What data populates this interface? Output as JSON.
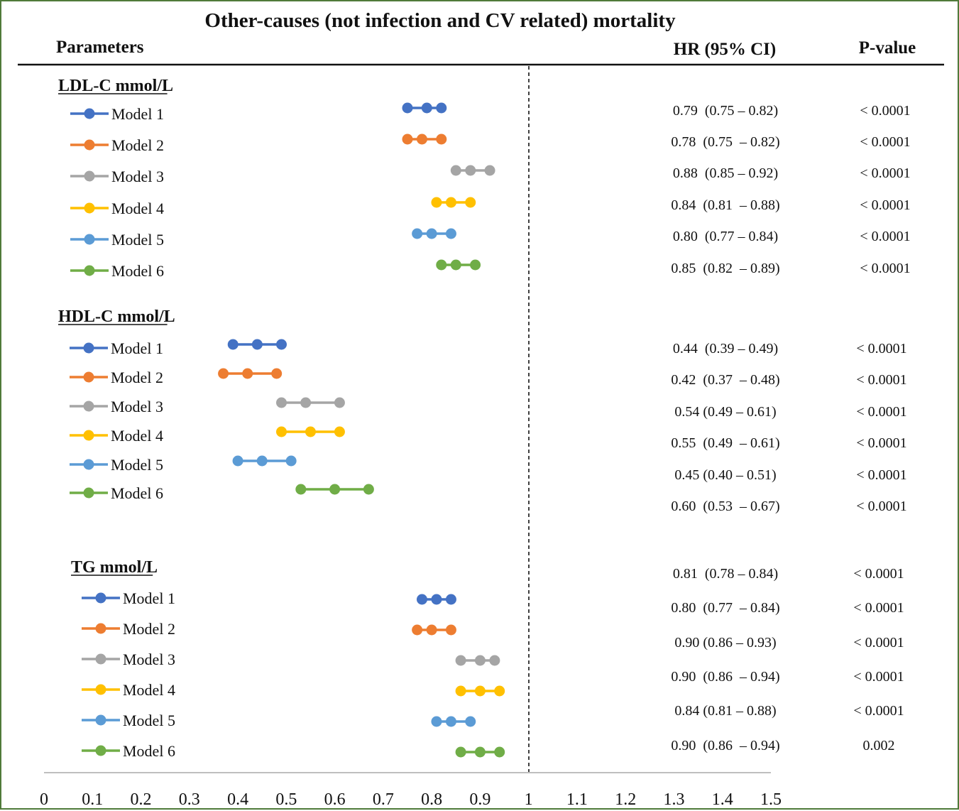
{
  "chart_data": {
    "type": "forest",
    "title": "Other-causes (not infection and CV related) mortality",
    "column_headers": {
      "parameters": "Parameters",
      "hr": "HR (95% CI)",
      "p": "P-value"
    },
    "xlim": [
      0,
      1.5
    ],
    "x_ticks": [
      "0",
      "0.1",
      "0.2",
      "0.3",
      "0.4",
      "0.5",
      "0.6",
      "0.7",
      "0.8",
      "0.9",
      "1",
      "1.1",
      "1.2",
      "1.3",
      "1.4",
      "1.5"
    ],
    "reference_line": 1,
    "model_colors": {
      "Model 1": "#4472c4",
      "Model 2": "#ed7d31",
      "Model 3": "#a5a5a5",
      "Model 4": "#ffc000",
      "Model 5": "#5b9bd5",
      "Model 6": "#70ad47"
    },
    "groups": [
      {
        "name": "LDL-C mmol/L",
        "rows": [
          {
            "model": "Model 1",
            "hr": 0.79,
            "lower": 0.75,
            "upper": 0.82,
            "hr_text": "0.79  (0.75 – 0.82)",
            "p": "< 0.0001"
          },
          {
            "model": "Model 2",
            "hr": 0.78,
            "lower": 0.75,
            "upper": 0.82,
            "hr_text": "0.78  (0.75  – 0.82)",
            "p": "< 0.0001"
          },
          {
            "model": "Model 3",
            "hr": 0.88,
            "lower": 0.85,
            "upper": 0.92,
            "hr_text": "0.88  (0.85 – 0.92)",
            "p": "< 0.0001"
          },
          {
            "model": "Model 4",
            "hr": 0.84,
            "lower": 0.81,
            "upper": 0.88,
            "hr_text": "0.84  (0.81  – 0.88)",
            "p": "< 0.0001"
          },
          {
            "model": "Model 5",
            "hr": 0.8,
            "lower": 0.77,
            "upper": 0.84,
            "hr_text": "0.80  (0.77 – 0.84)",
            "p": "< 0.0001"
          },
          {
            "model": "Model 6",
            "hr": 0.85,
            "lower": 0.82,
            "upper": 0.89,
            "hr_text": "0.85  (0.82  – 0.89)",
            "p": "< 0.0001"
          }
        ]
      },
      {
        "name": "HDL-C mmol/L",
        "rows": [
          {
            "model": "Model 1",
            "hr": 0.44,
            "lower": 0.39,
            "upper": 0.49,
            "hr_text": "0.44  (0.39 – 0.49)",
            "p": "< 0.0001"
          },
          {
            "model": "Model 2",
            "hr": 0.42,
            "lower": 0.37,
            "upper": 0.48,
            "hr_text": "0.42  (0.37  – 0.48)",
            "p": "< 0.0001"
          },
          {
            "model": "Model 3",
            "hr": 0.54,
            "lower": 0.49,
            "upper": 0.61,
            "hr_text": "0.54 (0.49 – 0.61)",
            "p": "< 0.0001"
          },
          {
            "model": "Model 4",
            "hr": 0.55,
            "lower": 0.49,
            "upper": 0.61,
            "hr_text": "0.55  (0.49  – 0.61)",
            "p": "< 0.0001"
          },
          {
            "model": "Model 5",
            "hr": 0.45,
            "lower": 0.4,
            "upper": 0.51,
            "hr_text": "0.45 (0.40 – 0.51)",
            "p": "< 0.0001"
          },
          {
            "model": "Model 6",
            "hr": 0.6,
            "lower": 0.53,
            "upper": 0.67,
            "hr_text": "0.60  (0.53  – 0.67)",
            "p": "< 0.0001"
          }
        ]
      },
      {
        "name": "TG mmol/L",
        "rows": [
          {
            "model": "Model 1",
            "hr": 0.81,
            "lower": 0.78,
            "upper": 0.84,
            "hr_text": "0.81  (0.78 – 0.84)",
            "p": "< 0.0001"
          },
          {
            "model": "Model 2",
            "hr": 0.8,
            "lower": 0.77,
            "upper": 0.84,
            "hr_text": "0.80  (0.77  – 0.84)",
            "p": "< 0.0001"
          },
          {
            "model": "Model 3",
            "hr": 0.9,
            "lower": 0.86,
            "upper": 0.93,
            "hr_text": "0.90 (0.86 – 0.93)",
            "p": "< 0.0001"
          },
          {
            "model": "Model 4",
            "hr": 0.9,
            "lower": 0.86,
            "upper": 0.94,
            "hr_text": "0.90  (0.86  – 0.94)",
            "p": "< 0.0001"
          },
          {
            "model": "Model 5",
            "hr": 0.84,
            "lower": 0.81,
            "upper": 0.88,
            "hr_text": "0.84 (0.81 – 0.88)",
            "p": "< 0.0001"
          },
          {
            "model": "Model 6",
            "hr": 0.9,
            "lower": 0.86,
            "upper": 0.94,
            "hr_text": "0.90  (0.86  – 0.94)",
            "p": "0.002"
          }
        ]
      }
    ]
  }
}
